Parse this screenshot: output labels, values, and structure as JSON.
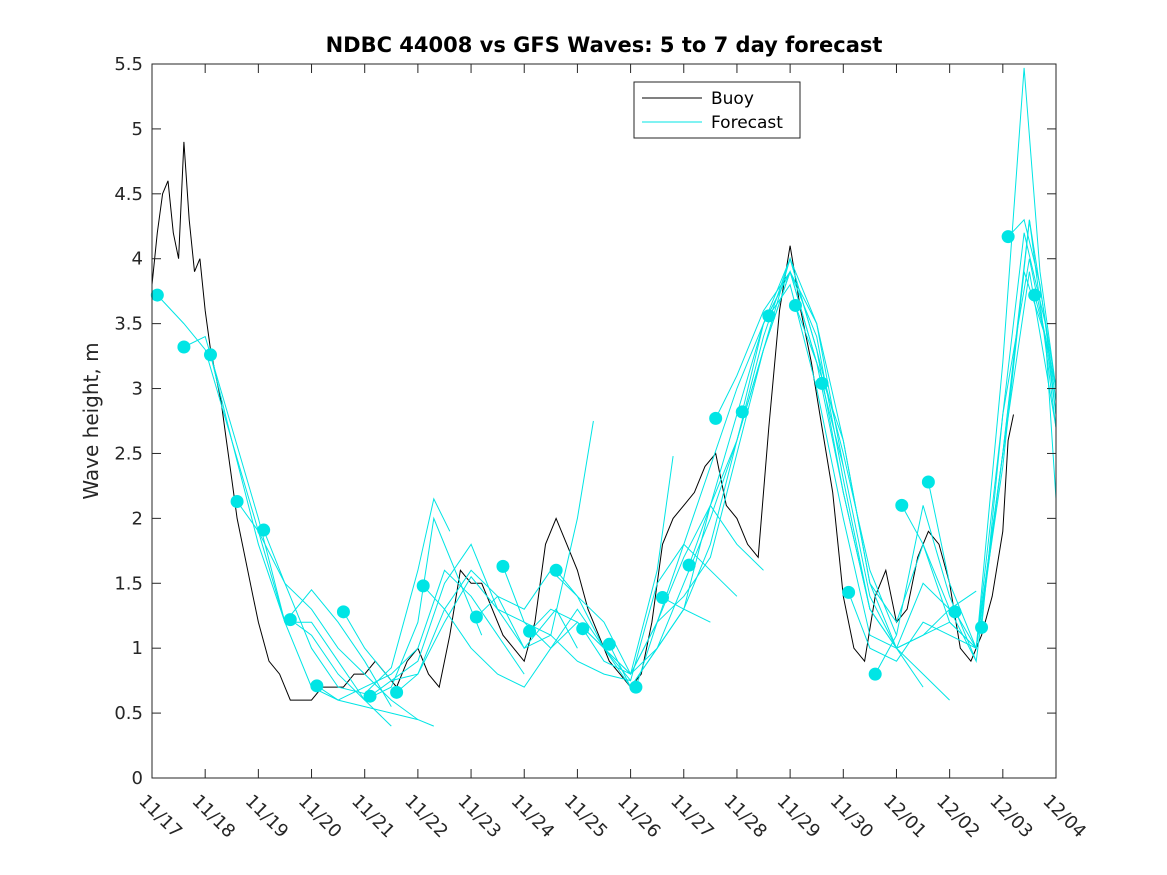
{
  "chart_data": {
    "type": "line",
    "title": "NDBC 44008 vs GFS Waves: 5 to 7 day forecast",
    "xlabel": "",
    "ylabel": "Wave height, m",
    "xlim": [
      0,
      17
    ],
    "ylim": [
      0,
      5.5
    ],
    "x_ticks": [
      0,
      1,
      2,
      3,
      4,
      5,
      6,
      7,
      8,
      9,
      10,
      11,
      12,
      13,
      14,
      15,
      16,
      17
    ],
    "x_tick_labels": [
      "11/17",
      "11/18",
      "11/19",
      "11/20",
      "11/21",
      "11/22",
      "11/23",
      "11/24",
      "11/25",
      "11/26",
      "11/27",
      "11/28",
      "11/29",
      "11/30",
      "12/01",
      "12/02",
      "12/03",
      "12/04"
    ],
    "y_ticks": [
      0,
      0.5,
      1,
      1.5,
      2,
      2.5,
      3,
      3.5,
      4,
      4.5,
      5,
      5.5
    ],
    "y_tick_labels": [
      "0",
      "0.5",
      "1",
      "1.5",
      "2",
      "2.5",
      "3",
      "3.5",
      "4",
      "4.5",
      "5",
      "5.5"
    ],
    "legend": {
      "position": "top-center-right",
      "entries": [
        "Buoy",
        "Forecast"
      ]
    },
    "colors": {
      "buoy": "#000000",
      "forecast": "#00e5e5",
      "axis": "#262626"
    },
    "series": [
      {
        "name": "Buoy",
        "x": [
          0.0,
          0.1,
          0.2,
          0.3,
          0.4,
          0.5,
          0.6,
          0.7,
          0.8,
          0.9,
          1.0,
          1.1,
          1.2,
          1.3,
          1.4,
          1.5,
          1.6,
          1.7,
          1.8,
          1.9,
          2.0,
          2.2,
          2.4,
          2.6,
          2.8,
          3.0,
          3.2,
          3.4,
          3.6,
          3.8,
          4.0,
          4.2,
          4.4,
          4.6,
          4.8,
          5.0,
          5.2,
          5.4,
          5.6,
          5.8,
          6.0,
          6.2,
          6.4,
          6.6,
          6.8,
          7.0,
          7.2,
          7.4,
          7.6,
          7.8,
          8.0,
          8.2,
          8.4,
          8.6,
          8.8,
          9.0,
          9.2,
          9.4,
          9.6,
          9.8,
          10.0,
          10.2,
          10.4,
          10.6,
          10.8,
          11.0,
          11.2,
          11.4,
          11.6,
          11.8,
          12.0,
          12.2,
          12.4,
          12.6,
          12.8,
          13.0,
          13.2,
          13.4,
          13.6,
          13.8,
          14.0,
          14.2,
          14.4,
          14.6,
          14.8,
          15.0,
          15.2,
          15.4,
          15.6,
          15.8,
          16.0,
          16.1,
          16.2
        ],
        "values": [
          3.8,
          4.2,
          4.5,
          4.6,
          4.2,
          4.0,
          4.9,
          4.3,
          3.9,
          4.0,
          3.6,
          3.3,
          3.1,
          2.9,
          2.6,
          2.3,
          2.0,
          1.8,
          1.6,
          1.4,
          1.2,
          0.9,
          0.8,
          0.6,
          0.6,
          0.6,
          0.7,
          0.7,
          0.7,
          0.8,
          0.8,
          0.9,
          0.8,
          0.7,
          0.9,
          1.0,
          0.8,
          0.7,
          1.1,
          1.6,
          1.5,
          1.5,
          1.3,
          1.1,
          1.0,
          0.9,
          1.2,
          1.8,
          2.0,
          1.8,
          1.6,
          1.3,
          1.1,
          0.9,
          0.8,
          0.7,
          0.8,
          1.2,
          1.8,
          2.0,
          2.1,
          2.2,
          2.4,
          2.5,
          2.1,
          2.0,
          1.8,
          1.7,
          2.7,
          3.6,
          4.1,
          3.6,
          3.2,
          2.7,
          2.2,
          1.4,
          1.0,
          0.9,
          1.4,
          1.6,
          1.2,
          1.3,
          1.7,
          1.9,
          1.8,
          1.5,
          1.0,
          0.9,
          1.1,
          1.4,
          1.9,
          2.6,
          2.8
        ]
      },
      {
        "name": "Forecast",
        "runs": [
          {
            "x": [
              0.1,
              0.6,
              1.0,
              1.5,
              2.0,
              2.5,
              3.0,
              3.5,
              4.0,
              4.5,
              5.0
            ],
            "values": [
              3.72,
              3.5,
              3.3,
              2.6,
              1.9,
              1.2,
              0.7,
              0.6,
              0.55,
              0.5,
              0.45
            ]
          },
          {
            "x": [
              0.6,
              1.0,
              1.5,
              2.0,
              2.5,
              3.0,
              3.5,
              4.0,
              4.5
            ],
            "values": [
              3.32,
              3.4,
              2.7,
              2.0,
              1.2,
              1.2,
              0.9,
              0.6,
              0.4
            ]
          },
          {
            "x": [
              1.1,
              1.5,
              2.0,
              2.5,
              3.0,
              3.5,
              4.0,
              4.5
            ],
            "values": [
              3.26,
              2.6,
              1.8,
              1.2,
              1.45,
              1.2,
              0.9,
              0.55
            ]
          },
          {
            "x": [
              1.6,
              2.0,
              2.5,
              3.0,
              3.5,
              4.0,
              4.5,
              5.0,
              5.3
            ],
            "values": [
              2.13,
              1.9,
              1.5,
              1.3,
              1.0,
              0.8,
              0.6,
              0.45,
              0.4
            ]
          },
          {
            "x": [
              2.1,
              2.5,
              3.0,
              3.5,
              4.0,
              4.5,
              5.0,
              5.3,
              5.6
            ],
            "values": [
              1.91,
              1.5,
              1.0,
              0.7,
              0.65,
              0.85,
              1.6,
              2.15,
              1.9
            ]
          },
          {
            "x": [
              2.6,
              3.0,
              3.5,
              4.0,
              4.5,
              5.0,
              5.3,
              5.8,
              6.2
            ],
            "values": [
              1.22,
              1.1,
              0.8,
              0.6,
              0.7,
              1.2,
              2.0,
              1.5,
              1.1
            ]
          },
          {
            "x": [
              3.1,
              3.5,
              4.0,
              4.5,
              5.0,
              5.5,
              6.0,
              6.5,
              7.0
            ],
            "values": [
              0.71,
              0.6,
              0.7,
              0.8,
              1.0,
              1.6,
              1.4,
              1.1,
              0.8
            ]
          },
          {
            "x": [
              3.6,
              4.0,
              4.5,
              5.0,
              5.5,
              6.0,
              6.5,
              7.0,
              7.6,
              8.0
            ],
            "values": [
              1.28,
              1.0,
              0.75,
              0.9,
              1.5,
              1.8,
              1.3,
              1.0,
              1.3,
              1.0
            ]
          },
          {
            "x": [
              4.1,
              4.5,
              5.0,
              5.5,
              6.0,
              6.5,
              7.0,
              7.5,
              8.0,
              8.3
            ],
            "values": [
              0.63,
              0.75,
              0.8,
              1.3,
              1.6,
              1.4,
              1.0,
              1.1,
              2.0,
              2.75
            ]
          },
          {
            "x": [
              4.6,
              5.0,
              5.5,
              6.0,
              6.5,
              7.0,
              7.5,
              8.0,
              8.5,
              9.0
            ],
            "values": [
              0.66,
              0.8,
              1.2,
              1.55,
              1.3,
              1.2,
              1.1,
              0.9,
              0.8,
              0.75
            ]
          },
          {
            "x": [
              5.1,
              5.5,
              6.0,
              6.5,
              7.0,
              7.5,
              8.0,
              8.5,
              9.0,
              9.5,
              9.8
            ],
            "values": [
              1.48,
              1.3,
              1.0,
              0.8,
              0.7,
              1.0,
              1.3,
              1.0,
              0.8,
              1.6,
              2.48
            ]
          },
          {
            "x": [
              6.1,
              6.5,
              7.0,
              7.5,
              8.0,
              8.5,
              9.0,
              9.5,
              10.0,
              10.5
            ],
            "values": [
              1.24,
              1.4,
              1.3,
              1.6,
              1.4,
              1.2,
              0.8,
              1.0,
              1.3,
              1.2
            ]
          },
          {
            "x": [
              6.6,
              7.0,
              7.5,
              8.0,
              8.5,
              9.0,
              9.5,
              10.0,
              10.5,
              11.0
            ],
            "values": [
              1.63,
              1.2,
              1.0,
              1.2,
              1.0,
              0.75,
              1.5,
              1.8,
              1.6,
              1.4
            ]
          },
          {
            "x": [
              7.1,
              7.5,
              8.0,
              8.5,
              9.0,
              9.5,
              10.0,
              10.5,
              11.0,
              11.5
            ],
            "values": [
              1.13,
              1.3,
              1.2,
              1.0,
              0.8,
              1.2,
              1.7,
              2.1,
              1.8,
              1.6
            ]
          },
          {
            "x": [
              7.6,
              8.0,
              8.5,
              9.0,
              9.5,
              10.0,
              10.5,
              11.0,
              11.5,
              12.0
            ],
            "values": [
              1.6,
              1.4,
              1.0,
              0.7,
              1.0,
              1.5,
              2.0,
              2.6,
              3.3,
              3.9
            ]
          },
          {
            "x": [
              8.1,
              8.5,
              9.0,
              9.5,
              10.0,
              10.5,
              11.0,
              11.5,
              12.0,
              12.5
            ],
            "values": [
              1.15,
              0.9,
              0.8,
              1.2,
              1.4,
              1.7,
              2.5,
              3.3,
              3.9,
              3.2
            ]
          },
          {
            "x": [
              8.6,
              9.0,
              9.5,
              10.0,
              10.5,
              11.0,
              11.5,
              12.0,
              12.5,
              13.0
            ],
            "values": [
              1.03,
              0.7,
              1.0,
              1.3,
              2.1,
              2.6,
              3.4,
              4.0,
              3.5,
              2.4
            ]
          },
          {
            "x": [
              9.1,
              9.5,
              10.0,
              10.5,
              11.0,
              11.5,
              12.0,
              12.5,
              13.0,
              13.5
            ],
            "values": [
              0.7,
              1.2,
              1.8,
              2.4,
              3.0,
              3.5,
              3.9,
              3.2,
              2.2,
              1.3
            ]
          },
          {
            "x": [
              9.6,
              10.0,
              10.5,
              11.0,
              11.5,
              12.0,
              12.5,
              13.0,
              13.5,
              14.0
            ],
            "values": [
              1.39,
              1.3,
              1.8,
              2.6,
              3.3,
              4.0,
              3.3,
              2.5,
              1.6,
              1.1
            ]
          },
          {
            "x": [
              10.1,
              10.5,
              11.0,
              11.5,
              12.0,
              12.5,
              13.0,
              13.5,
              14.0,
              14.5
            ],
            "values": [
              1.64,
              2.1,
              2.8,
              3.5,
              3.9,
              3.5,
              2.6,
              1.5,
              1.0,
              0.7
            ]
          },
          {
            "x": [
              10.6,
              11.0,
              11.5,
              12.0,
              12.5,
              13.0,
              13.5,
              14.0,
              14.5,
              15.0
            ],
            "values": [
              2.77,
              3.1,
              3.6,
              3.9,
              3.4,
              2.3,
              1.3,
              1.0,
              0.8,
              0.6
            ]
          },
          {
            "x": [
              11.1,
              11.5,
              12.0,
              12.5,
              13.0,
              13.5,
              14.0,
              14.5,
              15.0
            ],
            "values": [
              2.82,
              3.5,
              4.0,
              3.3,
              2.2,
              1.3,
              1.0,
              1.1,
              1.3
            ]
          },
          {
            "x": [
              11.6,
              12.0,
              12.5,
              13.0,
              13.5,
              14.0,
              14.5,
              15.0,
              15.5
            ],
            "values": [
              3.56,
              3.8,
              3.0,
              2.0,
              1.1,
              1.0,
              1.5,
              1.3,
              1.44
            ]
          },
          {
            "x": [
              12.1,
              12.5,
              13.0,
              13.5,
              14.0,
              14.5,
              15.0,
              15.5
            ],
            "values": [
              3.64,
              3.2,
              2.6,
              1.5,
              1.2,
              1.8,
              1.3,
              0.9
            ]
          },
          {
            "x": [
              12.6,
              13.0,
              13.5,
              14.0,
              14.5,
              15.0,
              15.5,
              16.0,
              16.5,
              17.0
            ],
            "values": [
              3.04,
              2.4,
              1.4,
              1.0,
              1.1,
              1.2,
              1.0,
              2.4,
              4.3,
              2.7
            ]
          },
          {
            "x": [
              13.1,
              13.5,
              14.0,
              14.5,
              15.0,
              15.5,
              16.0,
              16.4,
              16.7,
              17.0
            ],
            "values": [
              1.43,
              1.0,
              0.9,
              1.2,
              1.1,
              1.0,
              3.2,
              5.47,
              3.9,
              3.0
            ]
          },
          {
            "x": [
              13.6,
              14.0,
              14.5,
              15.0,
              15.5,
              16.0,
              16.4,
              16.8,
              17.0
            ],
            "values": [
              0.8,
              1.1,
              2.1,
              1.4,
              0.9,
              2.5,
              3.9,
              3.4,
              2.15
            ]
          },
          {
            "x": [
              14.1,
              14.5,
              15.0,
              15.5,
              16.0,
              16.4,
              16.8,
              17.0
            ],
            "values": [
              2.1,
              1.8,
              1.2,
              1.0,
              2.8,
              4.2,
              3.5,
              2.8
            ]
          },
          {
            "x": [
              14.6,
              15.0,
              15.5,
              16.0,
              16.5,
              17.0
            ],
            "values": [
              2.28,
              1.5,
              1.0,
              2.5,
              4.3,
              3.0
            ]
          },
          {
            "x": [
              15.1,
              15.5,
              16.0,
              16.5,
              17.0
            ],
            "values": [
              1.28,
              1.0,
              2.5,
              3.9,
              2.7
            ]
          },
          {
            "x": [
              15.6,
              16.0,
              16.5,
              17.0
            ],
            "values": [
              1.16,
              2.8,
              4.0,
              3.0
            ]
          },
          {
            "x": [
              16.1,
              16.4,
              16.7,
              17.0
            ],
            "values": [
              4.17,
              4.3,
              3.8,
              2.9
            ]
          },
          {
            "x": [
              16.6,
              16.8,
              17.0
            ],
            "values": [
              3.72,
              3.4,
              2.8
            ]
          }
        ]
      }
    ]
  }
}
